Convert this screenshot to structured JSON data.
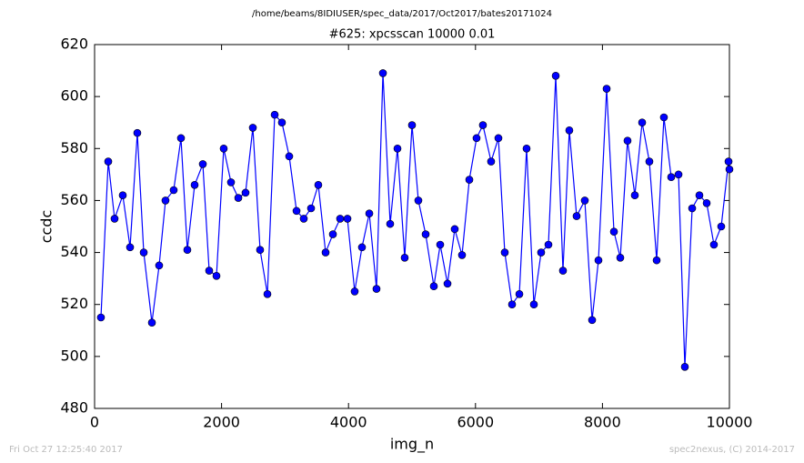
{
  "chart_data": {
    "type": "line",
    "suptitle": "/home/beams/8IDIUSER/spec_data/2017/Oct2017/bates20171024",
    "title": "#625: xpcsscan 10000 0.01",
    "xlabel": "img_n",
    "ylabel": "ccdc",
    "footer_left": "Fri Oct 27 12:25:40 2017",
    "footer_right": "spec2nexus, (C) 2014-2017",
    "color": "#0000ff",
    "marker_edge_color": "#000000",
    "xlim": [
      0,
      10000
    ],
    "xticks": [
      0,
      2000,
      4000,
      6000,
      8000,
      10000
    ],
    "ylim": [
      480,
      620
    ],
    "yticks": [
      480,
      500,
      520,
      540,
      560,
      580,
      600,
      620
    ],
    "x": [
      100,
      215,
      315,
      444,
      559,
      673,
      774,
      903,
      1017,
      1117,
      1246,
      1361,
      1461,
      1576,
      1705,
      1805,
      1920,
      2034,
      2149,
      2264,
      2378,
      2493,
      2607,
      2722,
      2837,
      2951,
      3066,
      3181,
      3295,
      3410,
      3524,
      3639,
      3754,
      3868,
      3983,
      4097,
      4212,
      4327,
      4441,
      4542,
      4656,
      4771,
      4885,
      5000,
      5100,
      5215,
      5344,
      5444,
      5559,
      5673,
      5788,
      5903,
      6017,
      6117,
      6246,
      6361,
      6461,
      6576,
      6691,
      6805,
      6920,
      7034,
      7149,
      7264,
      7378,
      7478,
      7593,
      7722,
      7837,
      7937,
      8066,
      8181,
      8281,
      8395,
      8510,
      8625,
      8739,
      8854,
      8968,
      9083,
      9198,
      9298,
      9413,
      9527,
      9642,
      9756,
      9871,
      9986,
      10000
    ],
    "values": [
      515,
      575,
      553,
      562,
      542,
      586,
      540,
      513,
      535,
      560,
      564,
      584,
      541,
      566,
      574,
      533,
      531,
      580,
      567,
      561,
      563,
      588,
      541,
      524,
      593,
      590,
      577,
      556,
      553,
      557,
      566,
      540,
      547,
      553,
      553,
      525,
      542,
      555,
      526,
      609,
      551,
      580,
      538,
      589,
      560,
      547,
      527,
      543,
      528,
      549,
      539,
      568,
      584,
      589,
      575,
      584,
      540,
      520,
      524,
      580,
      520,
      540,
      543,
      608,
      533,
      587,
      554,
      560,
      514,
      537,
      603,
      548,
      538,
      583,
      562,
      590,
      575,
      537,
      592,
      569,
      570,
      496,
      557,
      562,
      559,
      543,
      550,
      575,
      572
    ]
  }
}
